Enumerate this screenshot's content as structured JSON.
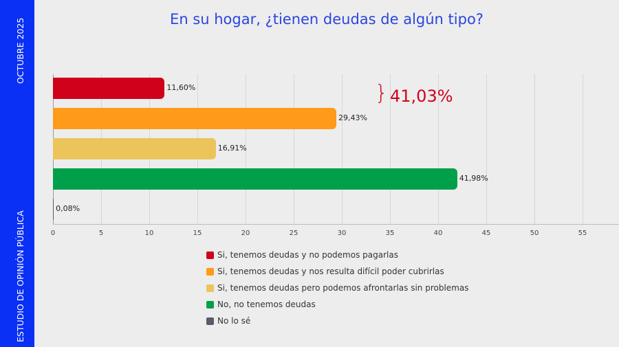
{
  "sidebar": {
    "top": "OCTUBRE 2025",
    "bottom": "ESTUDIO DE OPINIÓN PÚBLICA"
  },
  "chart_data": {
    "type": "bar",
    "orientation": "horizontal",
    "title": "En su hogar, ¿tienen deudas de algún tipo?",
    "categories": [
      "Si, tenemos deudas y no podemos pagarlas",
      "Si, tenemos deudas y nos resulta difícil poder cubrirlas",
      "Si, tenemos deudas pero podemos afrontarlas sin problemas",
      "No, no tenemos deudas",
      "No lo sé"
    ],
    "values": [
      11.6,
      29.43,
      16.91,
      41.98,
      0.08
    ],
    "labels": [
      "11,60%",
      "29,43%",
      "16,91%",
      "41,98%",
      "0,08%"
    ],
    "colors": [
      "#d0021b",
      "#ff9a1a",
      "#ecc45c",
      "#00a04a",
      "#5a5a6a"
    ],
    "xticks": [
      "0",
      "5",
      "10",
      "15",
      "20",
      "25",
      "30",
      "35",
      "40",
      "45",
      "50",
      "55"
    ],
    "xlim": [
      0,
      59
    ],
    "grid": true,
    "legend_position": "bottom",
    "annotation": {
      "brace": "}",
      "text": "41,03%"
    }
  }
}
